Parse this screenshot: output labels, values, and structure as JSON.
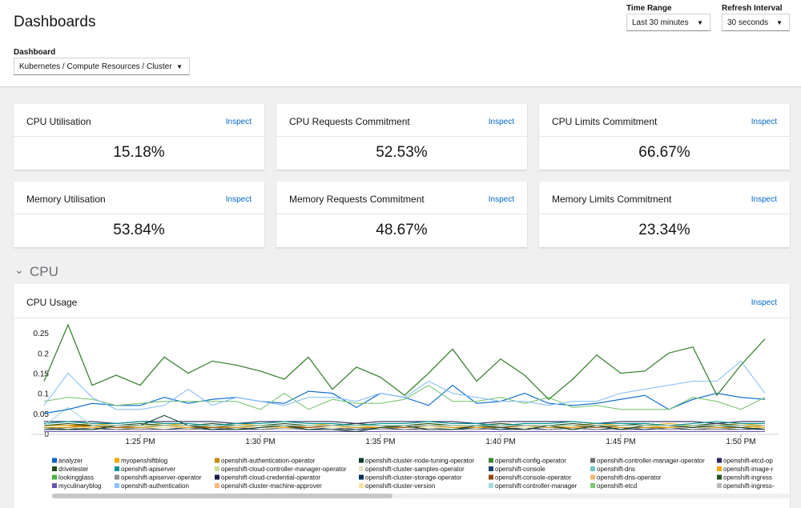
{
  "header": {
    "title": "Dashboards"
  },
  "filters": {
    "dashboard": {
      "label": "Dashboard",
      "value": "Kubernetes / Compute Resources / Cluster"
    },
    "time_range": {
      "label": "Time Range",
      "value": "Last 30 minutes"
    },
    "refresh_interval": {
      "label": "Refresh Interval",
      "value": "30 seconds"
    }
  },
  "cards": [
    {
      "title": "CPU Utilisation",
      "value": "15.18%",
      "link": "Inspect"
    },
    {
      "title": "CPU Requests Commitment",
      "value": "52.53%",
      "link": "Inspect"
    },
    {
      "title": "CPU Limits Commitment",
      "value": "66.67%",
      "link": "Inspect"
    },
    {
      "title": "Memory Utilisation",
      "value": "53.84%",
      "link": "Inspect"
    },
    {
      "title": "Memory Requests Commitment",
      "value": "48.67%",
      "link": "Inspect"
    },
    {
      "title": "Memory Limits Commitment",
      "value": "23.34%",
      "link": "Inspect"
    }
  ],
  "section": "CPU",
  "chart_data": {
    "type": "line",
    "title": "CPU Usage",
    "link": "Inspect",
    "x": [
      "1:21 PM",
      "1:22 PM",
      "1:23 PM",
      "1:24 PM",
      "1:25 PM",
      "1:26 PM",
      "1:27 PM",
      "1:28 PM",
      "1:29 PM",
      "1:30 PM",
      "1:31 PM",
      "1:32 PM",
      "1:33 PM",
      "1:34 PM",
      "1:35 PM",
      "1:36 PM",
      "1:37 PM",
      "1:38 PM",
      "1:39 PM",
      "1:40 PM",
      "1:41 PM",
      "1:42 PM",
      "1:43 PM",
      "1:44 PM",
      "1:45 PM",
      "1:46 PM",
      "1:47 PM",
      "1:48 PM",
      "1:49 PM",
      "1:50 PM",
      "1:51 PM"
    ],
    "xticks": [
      "1:25 PM",
      "1:30 PM",
      "1:35 PM",
      "1:40 PM",
      "1:45 PM",
      "1:50 PM"
    ],
    "ylim": [
      0,
      0.28
    ],
    "yticks": [
      0,
      0.05,
      0.1,
      0.15,
      0.2,
      0.25
    ],
    "grid": false,
    "series": [
      {
        "name": "analyzer",
        "color": "#0066cc",
        "values": [
          0.05,
          0.06,
          0.075,
          0.07,
          0.07,
          0.09,
          0.075,
          0.085,
          0.09,
          0.08,
          0.075,
          0.105,
          0.1,
          0.065,
          0.1,
          0.09,
          0.07,
          0.12,
          0.075,
          0.08,
          0.1,
          0.075,
          0.07,
          0.075,
          0.085,
          0.095,
          0.06,
          0.085,
          0.1,
          0.09,
          0.085
        ]
      },
      {
        "name": "myopenshiftblog",
        "color": "#f0ab00",
        "values": [
          0.02,
          0.02,
          0.025,
          0.02,
          0.02,
          0.025,
          0.02,
          0.02,
          0.025,
          0.02,
          0.02,
          0.02,
          0.025,
          0.02,
          0.02,
          0.02,
          0.025,
          0.02,
          0.02,
          0.025,
          0.02,
          0.02,
          0.02,
          0.025,
          0.02,
          0.02,
          0.025,
          0.02,
          0.02,
          0.025,
          0.02
        ]
      },
      {
        "name": "openshift-authentication-operator",
        "color": "#c58c00",
        "values": [
          0.015,
          0.015,
          0.02,
          0.015,
          0.015,
          0.02,
          0.015,
          0.015,
          0.015,
          0.02,
          0.015,
          0.015,
          0.02,
          0.015,
          0.015,
          0.015,
          0.02,
          0.015,
          0.015,
          0.015,
          0.02,
          0.015,
          0.015,
          0.02,
          0.015,
          0.015,
          0.015,
          0.02,
          0.015,
          0.015,
          0.02
        ]
      },
      {
        "name": "openshift-cluster-node-tuning-operator",
        "color": "#0b3d2c",
        "values": [
          0.01,
          0.01,
          0.01,
          0.02,
          0.02,
          0.045,
          0.02,
          0.01,
          0.01,
          0.015,
          0.02,
          0.01,
          0.01,
          0.005,
          0.015,
          0.02,
          0.01,
          0.01,
          0.02,
          0.015,
          0.01,
          0.02,
          0.01,
          0.02,
          0.01,
          0.02,
          0.02,
          0.015,
          0.02,
          0.015,
          0.01
        ]
      },
      {
        "name": "openshift-config-operator",
        "color": "#3e8635",
        "values": [
          0.13,
          0.27,
          0.12,
          0.145,
          0.12,
          0.19,
          0.15,
          0.18,
          0.17,
          0.155,
          0.135,
          0.19,
          0.11,
          0.165,
          0.14,
          0.095,
          0.15,
          0.21,
          0.13,
          0.185,
          0.145,
          0.085,
          0.135,
          0.195,
          0.15,
          0.155,
          0.2,
          0.215,
          0.095,
          0.17,
          0.235
        ]
      },
      {
        "name": "openshift-controller-manager-operator",
        "color": "#6a6e73",
        "values": [
          0.01,
          0.01,
          0.015,
          0.01,
          0.01,
          0.01,
          0.015,
          0.01,
          0.01,
          0.01,
          0.015,
          0.01,
          0.01,
          0.01,
          0.015,
          0.01,
          0.01,
          0.01,
          0.015,
          0.01,
          0.01,
          0.01,
          0.015,
          0.01,
          0.01,
          0.01,
          0.015,
          0.01,
          0.01,
          0.01,
          0.015
        ]
      },
      {
        "name": "openshift-etcd-op",
        "color": "#2a265f",
        "values": [
          0.03,
          0.03,
          0.03,
          0.025,
          0.03,
          0.03,
          0.03,
          0.03,
          0.025,
          0.03,
          0.03,
          0.03,
          0.03,
          0.025,
          0.03,
          0.03,
          0.03,
          0.03,
          0.025,
          0.03,
          0.03,
          0.03,
          0.03,
          0.025,
          0.03,
          0.03,
          0.03,
          0.03,
          0.025,
          0.03,
          0.03
        ]
      },
      {
        "name": "drivetester",
        "color": "#1e4f18",
        "values": [
          0.005,
          0.005,
          0.005,
          0.005,
          0.005,
          0.005,
          0.005,
          0.005,
          0.005,
          0.005,
          0.005,
          0.005,
          0.005,
          0.005,
          0.005,
          0.005,
          0.005,
          0.005,
          0.005,
          0.005,
          0.005,
          0.005,
          0.005,
          0.005,
          0.005,
          0.005,
          0.005,
          0.005,
          0.005,
          0.005,
          0.005
        ]
      },
      {
        "name": "openshift-apiserver",
        "color": "#009596",
        "values": [
          0.025,
          0.03,
          0.025,
          0.025,
          0.03,
          0.025,
          0.025,
          0.02,
          0.025,
          0.025,
          0.03,
          0.025,
          0.025,
          0.02,
          0.025,
          0.025,
          0.03,
          0.025,
          0.025,
          0.02,
          0.025,
          0.025,
          0.03,
          0.025,
          0.025,
          0.025,
          0.02,
          0.025,
          0.03,
          0.025,
          0.025
        ]
      },
      {
        "name": "openshift-cloud-controller-manager-operator",
        "color": "#c9dd96",
        "values": [
          0.01,
          0.01,
          0.01,
          0.01,
          0.01,
          0.01,
          0.01,
          0.01,
          0.01,
          0.01,
          0.01,
          0.01,
          0.01,
          0.01,
          0.01,
          0.01,
          0.01,
          0.01,
          0.01,
          0.01,
          0.01,
          0.01,
          0.01,
          0.01,
          0.01,
          0.01,
          0.01,
          0.01,
          0.01,
          0.01,
          0.01
        ]
      },
      {
        "name": "openshift-cluster-samples-operator",
        "color": "#e8e2cc",
        "values": [
          0.005,
          0.005,
          0.005,
          0.005,
          0.005,
          0.005,
          0.005,
          0.005,
          0.005,
          0.005,
          0.005,
          0.005,
          0.005,
          0.005,
          0.005,
          0.005,
          0.005,
          0.005,
          0.005,
          0.005,
          0.005,
          0.005,
          0.005,
          0.005,
          0.005,
          0.005,
          0.005,
          0.005,
          0.005,
          0.005,
          0.005
        ]
      },
      {
        "name": "openshift-console",
        "color": "#1d3f6e",
        "values": [
          0.015,
          0.01,
          0.015,
          0.01,
          0.015,
          0.01,
          0.015,
          0.01,
          0.015,
          0.01,
          0.015,
          0.01,
          0.015,
          0.01,
          0.015,
          0.01,
          0.015,
          0.01,
          0.015,
          0.01,
          0.015,
          0.01,
          0.015,
          0.01,
          0.015,
          0.01,
          0.015,
          0.01,
          0.015,
          0.01,
          0.015
        ]
      },
      {
        "name": "openshift-dns",
        "color": "#73c5c5",
        "values": [
          0.02,
          0.02,
          0.02,
          0.02,
          0.02,
          0.02,
          0.02,
          0.02,
          0.02,
          0.02,
          0.02,
          0.02,
          0.02,
          0.02,
          0.02,
          0.02,
          0.02,
          0.02,
          0.02,
          0.02,
          0.02,
          0.02,
          0.02,
          0.02,
          0.02,
          0.02,
          0.02,
          0.02,
          0.02,
          0.02,
          0.02
        ]
      },
      {
        "name": "openshift-image-r",
        "color": "#f4a70b",
        "values": [
          0.02,
          0.02,
          0.015,
          0.02,
          0.02,
          0.02,
          0.015,
          0.02,
          0.02,
          0.02,
          0.015,
          0.02,
          0.02,
          0.02,
          0.015,
          0.02,
          0.02,
          0.02,
          0.015,
          0.02,
          0.02,
          0.02,
          0.015,
          0.02,
          0.02,
          0.02,
          0.015,
          0.02,
          0.02,
          0.02,
          0.015
        ]
      },
      {
        "name": "lookingglass",
        "color": "#4cb140",
        "values": [
          0.005,
          0.005,
          0.005,
          0.005,
          0.005,
          0.005,
          0.005,
          0.005,
          0.005,
          0.005,
          0.005,
          0.005,
          0.005,
          0.005,
          0.005,
          0.005,
          0.005,
          0.005,
          0.005,
          0.005,
          0.005,
          0.005,
          0.005,
          0.005,
          0.005,
          0.005,
          0.005,
          0.005,
          0.005,
          0.005,
          0.005
        ]
      },
      {
        "name": "openshift-apiserver-operator",
        "color": "#8a8d90",
        "values": [
          0.01,
          0.015,
          0.01,
          0.01,
          0.015,
          0.01,
          0.01,
          0.015,
          0.01,
          0.01,
          0.015,
          0.01,
          0.01,
          0.015,
          0.01,
          0.01,
          0.015,
          0.01,
          0.01,
          0.015,
          0.01,
          0.01,
          0.015,
          0.01,
          0.01,
          0.015,
          0.01,
          0.01,
          0.015,
          0.01,
          0.01
        ]
      },
      {
        "name": "openshift-cloud-credential-operator",
        "color": "#1a1a4a",
        "values": [
          0.005,
          0.005,
          0.005,
          0.005,
          0.005,
          0.005,
          0.005,
          0.005,
          0.005,
          0.005,
          0.005,
          0.005,
          0.005,
          0.005,
          0.005,
          0.005,
          0.005,
          0.005,
          0.005,
          0.005,
          0.005,
          0.005,
          0.005,
          0.005,
          0.005,
          0.005,
          0.005,
          0.005,
          0.005,
          0.005,
          0.005
        ]
      },
      {
        "name": "openshift-cluster-storage-operator",
        "color": "#002f5d",
        "values": [
          0.01,
          0.01,
          0.01,
          0.01,
          0.01,
          0.01,
          0.01,
          0.01,
          0.01,
          0.01,
          0.01,
          0.01,
          0.01,
          0.01,
          0.01,
          0.01,
          0.01,
          0.01,
          0.01,
          0.01,
          0.01,
          0.01,
          0.01,
          0.01,
          0.01,
          0.01,
          0.01,
          0.01,
          0.01,
          0.01,
          0.01
        ]
      },
      {
        "name": "openshift-console-operator",
        "color": "#8f4700",
        "values": [
          0.02,
          0.02,
          0.02,
          0.015,
          0.02,
          0.02,
          0.02,
          0.015,
          0.02,
          0.02,
          0.02,
          0.015,
          0.02,
          0.02,
          0.02,
          0.015,
          0.02,
          0.02,
          0.02,
          0.015,
          0.02,
          0.02,
          0.02,
          0.015,
          0.02,
          0.02,
          0.02,
          0.015,
          0.02,
          0.02,
          0.02
        ]
      },
      {
        "name": "openshift-dns-operator",
        "color": "#f4b678",
        "values": [
          0.01,
          0.01,
          0.01,
          0.01,
          0.01,
          0.01,
          0.01,
          0.01,
          0.01,
          0.01,
          0.01,
          0.01,
          0.01,
          0.01,
          0.01,
          0.01,
          0.01,
          0.01,
          0.01,
          0.01,
          0.01,
          0.01,
          0.01,
          0.01,
          0.01,
          0.01,
          0.01,
          0.01,
          0.01,
          0.01,
          0.01
        ]
      },
      {
        "name": "openshift-ingress",
        "color": "#23511e",
        "values": [
          0.02,
          0.025,
          0.02,
          0.02,
          0.025,
          0.02,
          0.02,
          0.025,
          0.02,
          0.02,
          0.025,
          0.02,
          0.02,
          0.025,
          0.02,
          0.02,
          0.025,
          0.02,
          0.02,
          0.025,
          0.02,
          0.02,
          0.025,
          0.02,
          0.02,
          0.025,
          0.02,
          0.02,
          0.025,
          0.02,
          0.02
        ]
      },
      {
        "name": "myculinaryblog",
        "color": "#6753ac",
        "values": [
          0.005,
          0.005,
          0.005,
          0.005,
          0.005,
          0.005,
          0.005,
          0.005,
          0.005,
          0.005,
          0.005,
          0.005,
          0.005,
          0.005,
          0.005,
          0.005,
          0.005,
          0.005,
          0.005,
          0.005,
          0.005,
          0.005,
          0.005,
          0.005,
          0.005,
          0.005,
          0.005,
          0.005,
          0.005,
          0.005,
          0.005
        ]
      },
      {
        "name": "openshift-authentication",
        "color": "#8bc1f7",
        "values": [
          0.07,
          0.15,
          0.09,
          0.06,
          0.06,
          0.07,
          0.11,
          0.07,
          0.09,
          0.08,
          0.07,
          0.09,
          0.09,
          0.08,
          0.1,
          0.09,
          0.13,
          0.1,
          0.09,
          0.08,
          0.08,
          0.07,
          0.08,
          0.08,
          0.1,
          0.11,
          0.12,
          0.13,
          0.13,
          0.18,
          0.1
        ]
      },
      {
        "name": "openshift-cluster-machine-approver",
        "color": "#f9b77a",
        "values": [
          0.01,
          0.01,
          0.01,
          0.01,
          0.01,
          0.01,
          0.01,
          0.01,
          0.01,
          0.01,
          0.01,
          0.01,
          0.01,
          0.01,
          0.01,
          0.01,
          0.01,
          0.01,
          0.01,
          0.01,
          0.01,
          0.01,
          0.01,
          0.01,
          0.01,
          0.01,
          0.01,
          0.01,
          0.01,
          0.01,
          0.01
        ]
      },
      {
        "name": "openshift-cluster-version",
        "color": "#f9e0a2",
        "values": [
          0.015,
          0.015,
          0.015,
          0.015,
          0.015,
          0.015,
          0.015,
          0.015,
          0.015,
          0.015,
          0.015,
          0.015,
          0.015,
          0.015,
          0.015,
          0.015,
          0.015,
          0.015,
          0.015,
          0.015,
          0.015,
          0.015,
          0.015,
          0.015,
          0.015,
          0.015,
          0.015,
          0.015,
          0.015,
          0.015,
          0.015
        ]
      },
      {
        "name": "openshift-controller-manager",
        "color": "#a2d9d9",
        "values": [
          0.02,
          0.065,
          0.02,
          0.02,
          0.02,
          0.02,
          0.02,
          0.02,
          0.02,
          0.02,
          0.02,
          0.02,
          0.02,
          0.02,
          0.02,
          0.02,
          0.02,
          0.02,
          0.02,
          0.02,
          0.02,
          0.02,
          0.02,
          0.02,
          0.02,
          0.02,
          0.02,
          0.02,
          0.02,
          0.02,
          0.02
        ]
      },
      {
        "name": "openshift-etcd",
        "color": "#7cc674",
        "values": [
          0.08,
          0.09,
          0.085,
          0.07,
          0.075,
          0.08,
          0.08,
          0.08,
          0.08,
          0.06,
          0.1,
          0.06,
          0.085,
          0.075,
          0.075,
          0.085,
          0.12,
          0.08,
          0.08,
          0.09,
          0.075,
          0.09,
          0.065,
          0.07,
          0.06,
          0.06,
          0.06,
          0.09,
          0.08,
          0.06,
          0.09
        ]
      },
      {
        "name": "openshift-ingress-",
        "color": "#b8bbbe",
        "values": [
          0.01,
          0.01,
          0.01,
          0.01,
          0.01,
          0.01,
          0.01,
          0.01,
          0.01,
          0.01,
          0.01,
          0.01,
          0.01,
          0.01,
          0.01,
          0.01,
          0.01,
          0.01,
          0.01,
          0.01,
          0.01,
          0.01,
          0.01,
          0.01,
          0.01,
          0.01,
          0.01,
          0.01,
          0.01,
          0.01,
          0.01
        ]
      }
    ]
  }
}
